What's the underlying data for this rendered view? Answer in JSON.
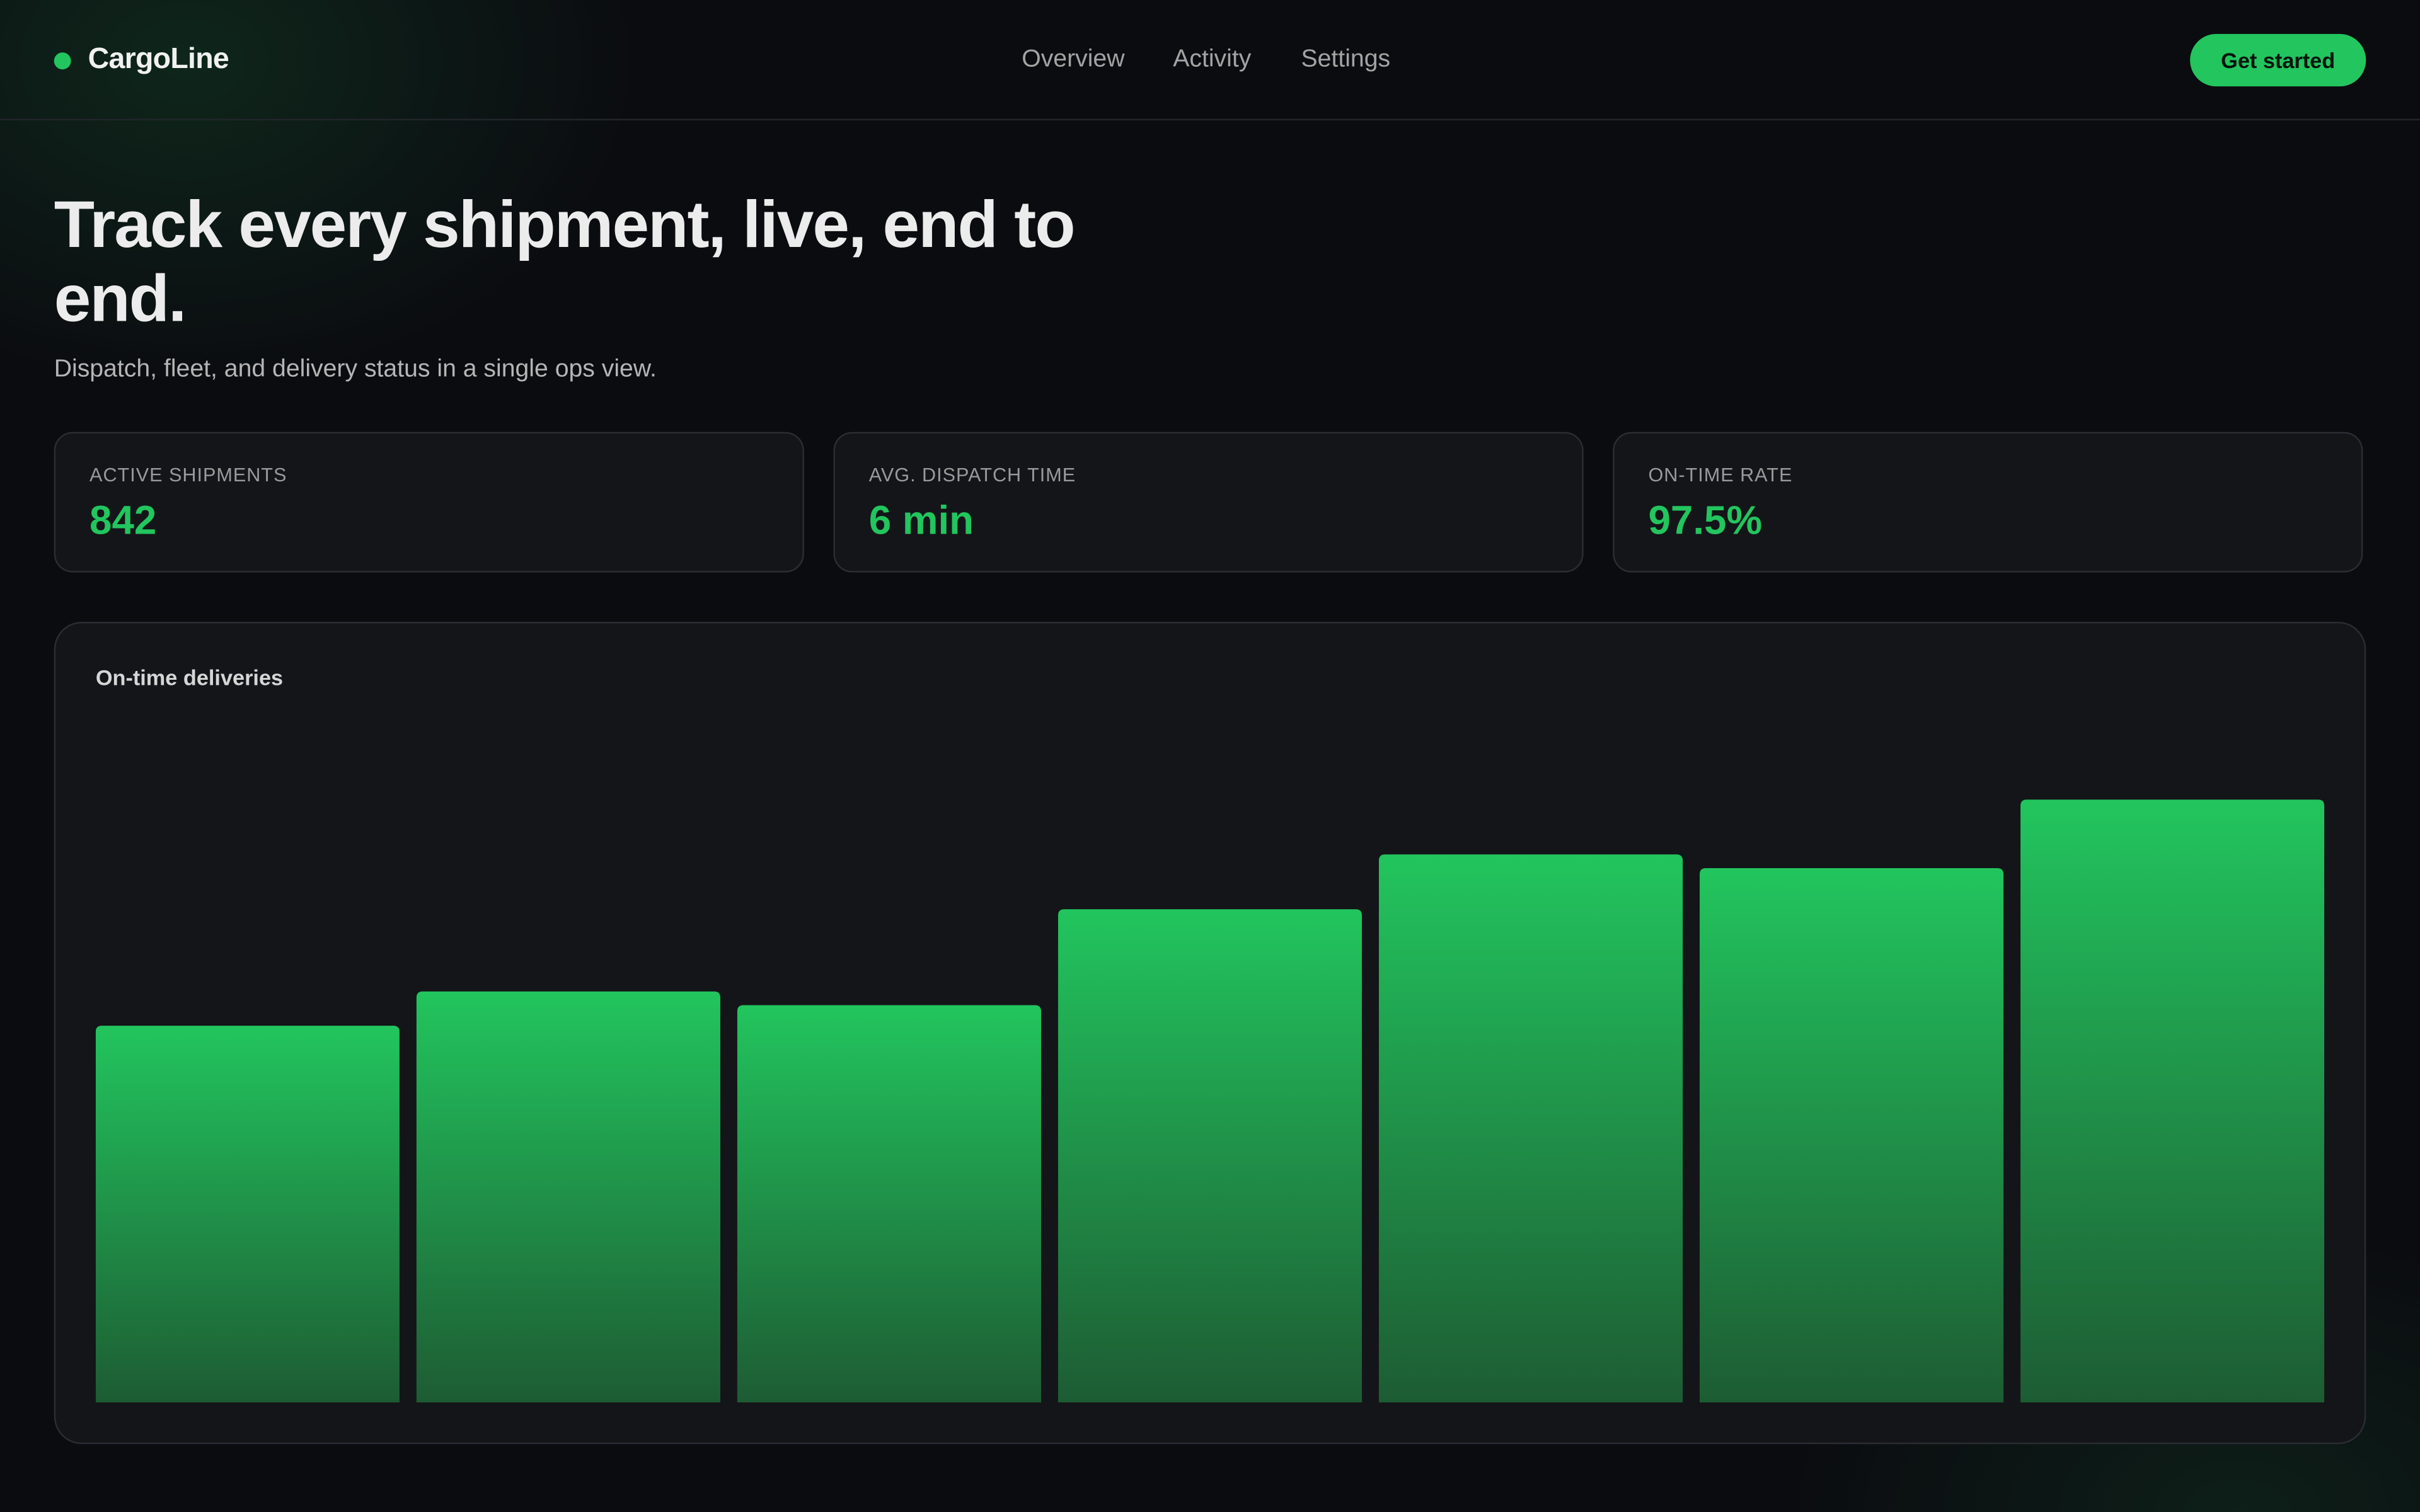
{
  "header": {
    "brand": "CargoLine",
    "nav": [
      "Overview",
      "Activity",
      "Settings"
    ],
    "cta": "Get started"
  },
  "hero": {
    "title": "Track every shipment, live, end to end.",
    "subtitle": "Dispatch, fleet, and delivery status in a single ops view."
  },
  "stats": [
    {
      "label": "ACTIVE SHIPMENTS",
      "value": "842"
    },
    {
      "label": "AVG. DISPATCH TIME",
      "value": "6 min"
    },
    {
      "label": "ON-TIME RATE",
      "value": "97.5%"
    }
  ],
  "chart_data": {
    "type": "bar",
    "title": "On-time deliveries",
    "values": [
      55,
      60,
      58,
      72,
      80,
      78,
      88
    ],
    "color": "#22c55e",
    "ylim": [
      0,
      100
    ]
  }
}
